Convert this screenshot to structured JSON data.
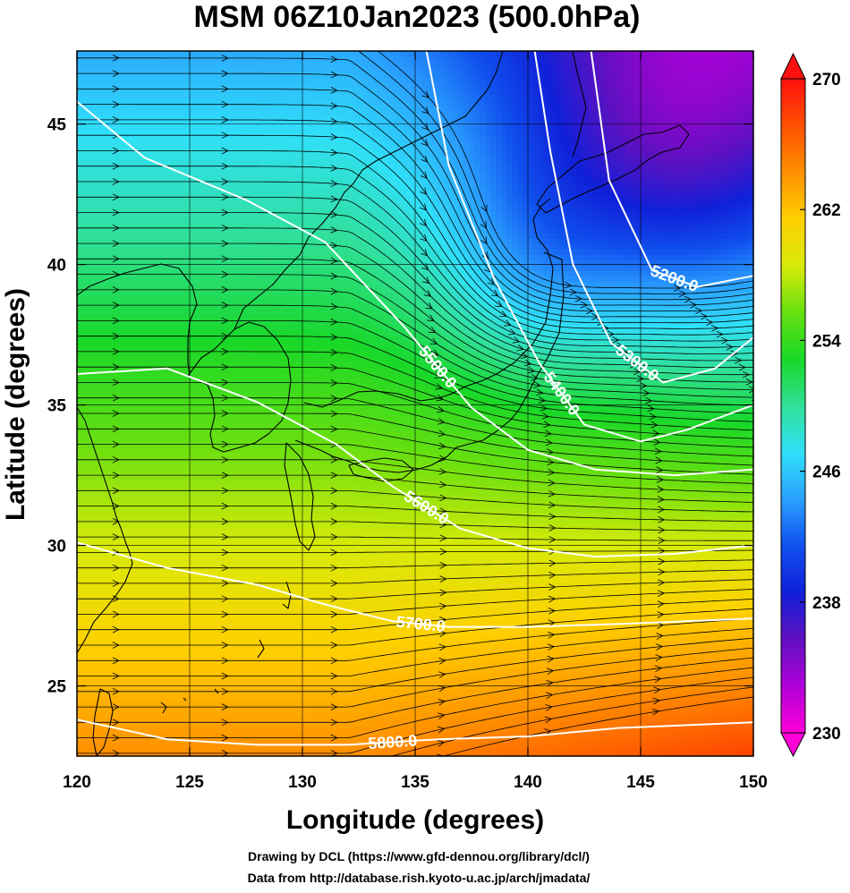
{
  "title": "MSM 06Z10Jan2023 (500.0hPa)",
  "xlabel": "Longitude (degrees)",
  "ylabel": "Latitude  (degrees)",
  "credits": [
    "Drawing by DCL (https://www.gfd-dennou.org/library/dcl/)",
    "Data from http://database.rish.kyoto-u.ac.jp/arch/jmadata/"
  ],
  "colors": {
    "contour": "#ffffff",
    "coastline": "#000000",
    "streamline": "#000000"
  },
  "chart_data": {
    "type": "heatmap",
    "x_axis": {
      "range": [
        120,
        150
      ],
      "ticks": [
        "120",
        "125",
        "130",
        "135",
        "140",
        "145",
        "150"
      ]
    },
    "y_axis": {
      "range": [
        22.5,
        47.6
      ],
      "ticks": [
        "25",
        "30",
        "35",
        "40",
        "45"
      ]
    },
    "grid": true,
    "colorbar": {
      "range": [
        230,
        270
      ],
      "ticks": [
        "230",
        "238",
        "246",
        "254",
        "262",
        "270"
      ],
      "colors": [
        "#ff00d8",
        "#b000d8",
        "#6010c0",
        "#1020d8",
        "#1050ee",
        "#2aa0ff",
        "#30e0f8",
        "#30e098",
        "#18d828",
        "#68e010",
        "#d8ea08",
        "#ffd000",
        "#ff9000",
        "#ff5000",
        "#ff1010"
      ]
    },
    "contours": [
      {
        "label": "5200.0",
        "value": 5200,
        "points": [
          [
            142.8,
            47.6
          ],
          [
            143.6,
            43
          ],
          [
            145.5,
            39.8
          ],
          [
            147.5,
            39.2
          ],
          [
            150,
            39.6
          ]
        ]
      },
      {
        "label": "5300.0",
        "value": 5300,
        "points": [
          [
            140.3,
            47.6
          ],
          [
            141,
            44
          ],
          [
            142,
            40
          ],
          [
            143.7,
            37.2
          ],
          [
            146,
            35.8
          ],
          [
            148.3,
            36.3
          ],
          [
            150,
            37.4
          ]
        ]
      },
      {
        "label": "5400.0",
        "value": 5400,
        "points": [
          [
            135.5,
            47.6
          ],
          [
            136.5,
            43.5
          ],
          [
            138.5,
            39.5
          ],
          [
            140.5,
            36.5
          ],
          [
            142.5,
            34.3
          ],
          [
            145,
            33.7
          ],
          [
            147,
            34.1
          ],
          [
            150,
            35
          ]
        ]
      },
      {
        "label": "5500.0",
        "value": 5500,
        "points": [
          [
            120,
            45.8
          ],
          [
            123,
            43.8
          ],
          [
            127.5,
            42.3
          ],
          [
            131,
            40.8
          ],
          [
            134.5,
            37.8
          ],
          [
            137.5,
            34.9
          ],
          [
            140,
            33.4
          ],
          [
            143,
            32.7
          ],
          [
            146.5,
            32.5
          ],
          [
            150,
            32.7
          ]
        ]
      },
      {
        "label": "5600.0",
        "value": 5600,
        "points": [
          [
            120,
            36.1
          ],
          [
            124,
            36.3
          ],
          [
            128,
            35.1
          ],
          [
            131.5,
            33.6
          ],
          [
            134,
            32.1
          ],
          [
            137,
            30.6
          ],
          [
            140,
            29.9
          ],
          [
            143,
            29.6
          ],
          [
            146.5,
            29.7
          ],
          [
            150,
            30
          ]
        ]
      },
      {
        "label": "5700.0",
        "value": 5700,
        "points": [
          [
            120,
            30.1
          ],
          [
            124,
            29.2
          ],
          [
            128,
            28.6
          ],
          [
            131,
            27.9
          ],
          [
            134,
            27.3
          ],
          [
            136.5,
            27.1
          ],
          [
            140,
            27.1
          ],
          [
            144,
            27.2
          ],
          [
            147,
            27.3
          ],
          [
            150,
            27.4
          ]
        ]
      },
      {
        "label": "5800.0",
        "value": 5800,
        "points": [
          [
            120,
            23.8
          ],
          [
            124,
            23.1
          ],
          [
            128,
            22.9
          ],
          [
            132,
            22.9
          ],
          [
            136,
            23.1
          ],
          [
            140,
            23.2
          ],
          [
            144,
            23.5
          ],
          [
            150,
            23.7
          ]
        ]
      }
    ]
  }
}
